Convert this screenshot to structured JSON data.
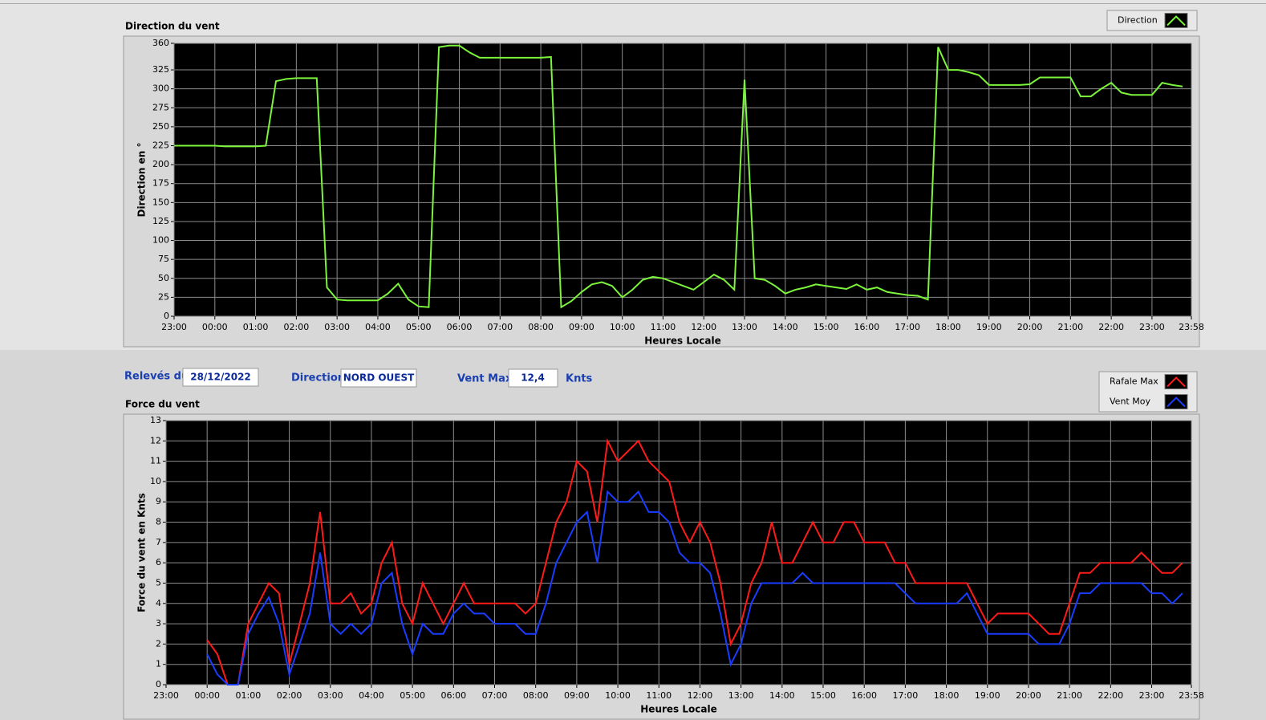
{
  "chart_data": [
    {
      "type": "line",
      "title": "Direction du vent",
      "ylabel": "Direction en °",
      "xlabel": "Heures Locale",
      "legend": "top-right",
      "grid": true,
      "x": [
        "23:00",
        "23:15",
        "23:30",
        "23:45",
        "00:00",
        "00:15",
        "00:30",
        "00:45",
        "01:00",
        "01:15",
        "01:30",
        "01:45",
        "02:00",
        "02:15",
        "02:30",
        "02:45",
        "03:00",
        "03:15",
        "03:30",
        "03:45",
        "04:00",
        "04:15",
        "04:30",
        "04:45",
        "05:00",
        "05:15",
        "05:30",
        "05:45",
        "06:00",
        "06:15",
        "06:30",
        "06:45",
        "07:00",
        "07:15",
        "07:30",
        "07:45",
        "08:00",
        "08:15",
        "08:30",
        "08:45",
        "09:00",
        "09:15",
        "09:30",
        "09:45",
        "10:00",
        "10:15",
        "10:30",
        "10:45",
        "11:00",
        "11:15",
        "11:30",
        "11:45",
        "12:00",
        "12:15",
        "12:30",
        "12:45",
        "13:00",
        "13:15",
        "13:30",
        "13:45",
        "14:00",
        "14:15",
        "14:30",
        "14:45",
        "15:00",
        "15:15",
        "15:30",
        "15:45",
        "16:00",
        "16:15",
        "16:30",
        "16:45",
        "17:00",
        "17:15",
        "17:30",
        "17:45",
        "18:00",
        "18:15",
        "18:30",
        "18:45",
        "19:00",
        "19:15",
        "19:30",
        "19:45",
        "20:00",
        "20:15",
        "20:30",
        "20:45",
        "21:00",
        "21:15",
        "21:30",
        "21:45",
        "22:00",
        "22:15",
        "22:30",
        "22:45",
        "23:00",
        "23:15",
        "23:30",
        "23:45"
      ],
      "series": [
        {
          "name": "Direction",
          "color": "#7cf43c",
          "values": [
            225,
            225,
            225,
            225,
            225,
            224,
            224,
            224,
            224,
            225,
            310,
            313,
            314,
            314,
            314,
            38,
            22,
            21,
            21,
            21,
            21,
            30,
            43,
            22,
            13,
            12,
            355,
            357,
            357,
            348,
            341,
            341,
            341,
            341,
            341,
            341,
            341,
            342,
            12,
            20,
            32,
            42,
            45,
            40,
            25,
            35,
            48,
            52,
            50,
            45,
            40,
            35,
            45,
            55,
            48,
            35,
            312,
            50,
            48,
            40,
            30,
            35,
            38,
            42,
            40,
            38,
            36,
            42,
            35,
            38,
            32,
            30,
            28,
            27,
            22,
            355,
            325,
            325,
            322,
            318,
            305,
            305,
            305,
            305,
            306,
            315,
            315,
            315,
            315,
            290,
            290,
            300,
            308,
            295,
            292,
            292,
            292,
            308,
            305,
            303
          ]
        }
      ],
      "xlim": [
        "23:00",
        "23:58"
      ],
      "xticks": [
        "23:00",
        "00:00",
        "01:00",
        "02:00",
        "03:00",
        "04:00",
        "05:00",
        "06:00",
        "07:00",
        "08:00",
        "09:00",
        "10:00",
        "11:00",
        "12:00",
        "13:00",
        "14:00",
        "15:00",
        "16:00",
        "17:00",
        "18:00",
        "19:00",
        "20:00",
        "21:00",
        "22:00",
        "23:00",
        "23:58"
      ],
      "ylim": [
        0,
        360
      ],
      "yticks": [
        0,
        25,
        50,
        75,
        100,
        125,
        150,
        175,
        200,
        225,
        250,
        275,
        300,
        325,
        360
      ]
    },
    {
      "type": "line",
      "title": "Force du vent",
      "ylabel": "Force du vent en Knts",
      "xlabel": "Heures Locale",
      "legend": "top-right",
      "grid": true,
      "x": [
        "23:00",
        "23:15",
        "23:30",
        "23:45",
        "00:00",
        "00:15",
        "00:30",
        "00:45",
        "01:00",
        "01:15",
        "01:30",
        "01:45",
        "02:00",
        "02:15",
        "02:30",
        "02:45",
        "03:00",
        "03:15",
        "03:30",
        "03:45",
        "04:00",
        "04:15",
        "04:30",
        "04:45",
        "05:00",
        "05:15",
        "05:30",
        "05:45",
        "06:00",
        "06:15",
        "06:30",
        "06:45",
        "07:00",
        "07:15",
        "07:30",
        "07:45",
        "08:00",
        "08:15",
        "08:30",
        "08:45",
        "09:00",
        "09:15",
        "09:30",
        "09:45",
        "10:00",
        "10:15",
        "10:30",
        "10:45",
        "11:00",
        "11:15",
        "11:30",
        "11:45",
        "12:00",
        "12:15",
        "12:30",
        "12:45",
        "13:00",
        "13:15",
        "13:30",
        "13:45",
        "14:00",
        "14:15",
        "14:30",
        "14:45",
        "15:00",
        "15:15",
        "15:30",
        "15:45",
        "16:00",
        "16:15",
        "16:30",
        "16:45",
        "17:00",
        "17:15",
        "17:30",
        "17:45",
        "18:00",
        "18:15",
        "18:30",
        "18:45",
        "19:00",
        "19:15",
        "19:30",
        "19:45",
        "20:00",
        "20:15",
        "20:30",
        "20:45",
        "21:00",
        "21:15",
        "21:30",
        "21:45",
        "22:00",
        "22:15",
        "22:30",
        "22:45",
        "23:00",
        "23:15",
        "23:30",
        "23:45"
      ],
      "series": [
        {
          "name": "Rafale Max",
          "color": "#ff1a1a",
          "values": [
            null,
            null,
            null,
            null,
            2.2,
            1.5,
            0,
            0,
            3,
            4,
            5,
            4.5,
            1,
            3,
            5,
            8.5,
            4,
            4,
            4.5,
            3.5,
            4,
            6,
            7,
            4,
            3,
            5,
            4,
            3,
            4,
            5,
            4,
            4,
            4,
            4,
            4,
            3.5,
            4,
            6,
            8,
            9,
            11,
            10.5,
            8,
            12,
            11,
            11.5,
            12,
            11,
            10.5,
            10,
            8,
            7,
            8,
            7,
            5,
            2,
            3,
            5,
            6,
            8,
            6,
            6,
            7,
            8,
            7,
            7,
            8,
            8,
            7,
            7,
            7,
            6,
            6,
            5,
            5,
            5,
            5,
            5,
            5,
            4,
            3,
            3.5,
            3.5,
            3.5,
            3.5,
            3,
            2.5,
            2.5,
            4,
            5.5,
            5.5,
            6,
            6,
            6,
            6,
            6.5,
            6,
            5.5,
            5.5,
            6
          ]
        },
        {
          "name": "Vent Moy",
          "color": "#1a3cff",
          "values": [
            null,
            null,
            null,
            null,
            1.5,
            0.5,
            0,
            0,
            2.5,
            3.5,
            4.3,
            3,
            0.5,
            2,
            3.5,
            6.5,
            3,
            2.5,
            3,
            2.5,
            3,
            5,
            5.5,
            3,
            1.5,
            3,
            2.5,
            2.5,
            3.5,
            4,
            3.5,
            3.5,
            3,
            3,
            3,
            2.5,
            2.5,
            4,
            6,
            7,
            8,
            8.5,
            6,
            9.5,
            9,
            9,
            9.5,
            8.5,
            8.5,
            8,
            6.5,
            6,
            6,
            5.5,
            3.5,
            1,
            2,
            4,
            5,
            5,
            5,
            5,
            5.5,
            5,
            5,
            5,
            5,
            5,
            5,
            5,
            5,
            5,
            4.5,
            4,
            4,
            4,
            4,
            4,
            4.5,
            3.5,
            2.5,
            2.5,
            2.5,
            2.5,
            2.5,
            2,
            2,
            2,
            3,
            4.5,
            4.5,
            5,
            5,
            5,
            5,
            5,
            4.5,
            4.5,
            4,
            4.5
          ]
        }
      ],
      "xlim": [
        "23:00",
        "23:58"
      ],
      "xticks": [
        "23:00",
        "00:00",
        "01:00",
        "02:00",
        "03:00",
        "04:00",
        "05:00",
        "06:00",
        "07:00",
        "08:00",
        "09:00",
        "10:00",
        "11:00",
        "12:00",
        "13:00",
        "14:00",
        "15:00",
        "16:00",
        "17:00",
        "18:00",
        "19:00",
        "20:00",
        "21:00",
        "22:00",
        "23:00",
        "23:58"
      ],
      "ylim": [
        0,
        13
      ],
      "yticks": [
        0,
        1,
        2,
        3,
        4,
        5,
        6,
        7,
        8,
        9,
        10,
        11,
        12,
        13
      ]
    }
  ],
  "panel": {
    "date_label": "Relevés du",
    "date": "28/12/2022",
    "direction_label": "Direction",
    "direction": "NORD OUEST",
    "wind_max_label": "Vent Max",
    "wind_max": "12,4",
    "unit": "Knts"
  }
}
